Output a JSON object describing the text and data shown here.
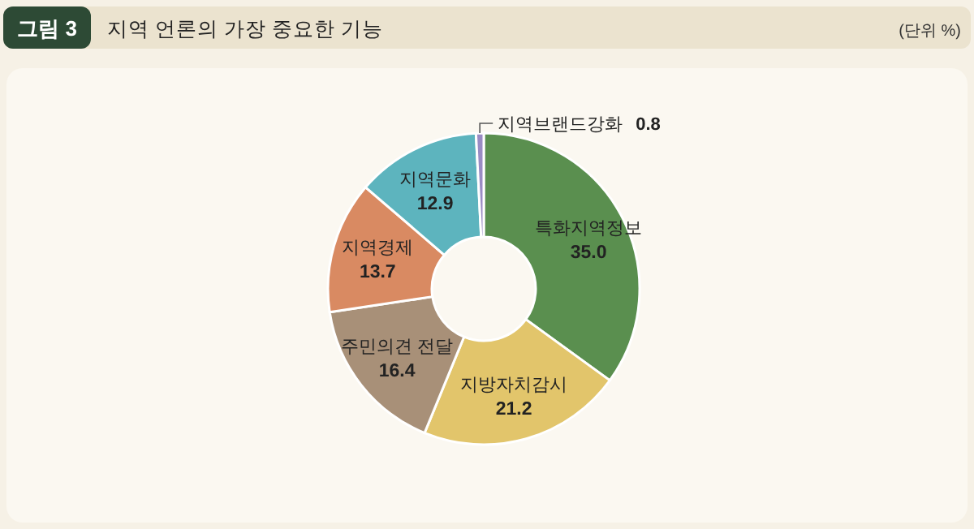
{
  "chart_data": {
    "type": "donut",
    "title": "지역 언론의 가장 중요한 기능",
    "subtitle": "(단위 %)",
    "annotations": [
      "그림 3"
    ],
    "categories": [
      "특화지역정보",
      "지방자치감시",
      "주민의견 전달",
      "지역경제",
      "지역문화",
      "지역브랜드강화"
    ],
    "values": [
      35.0,
      21.2,
      16.4,
      13.7,
      12.9,
      0.8
    ],
    "value_labels": [
      "35.0",
      "21.2",
      "16.4",
      "13.7",
      "12.9",
      "0.8"
    ],
    "colors": [
      "#5a8f4f",
      "#e2c56b",
      "#a89078",
      "#d98a62",
      "#5db4be",
      "#9a8cc4"
    ]
  }
}
